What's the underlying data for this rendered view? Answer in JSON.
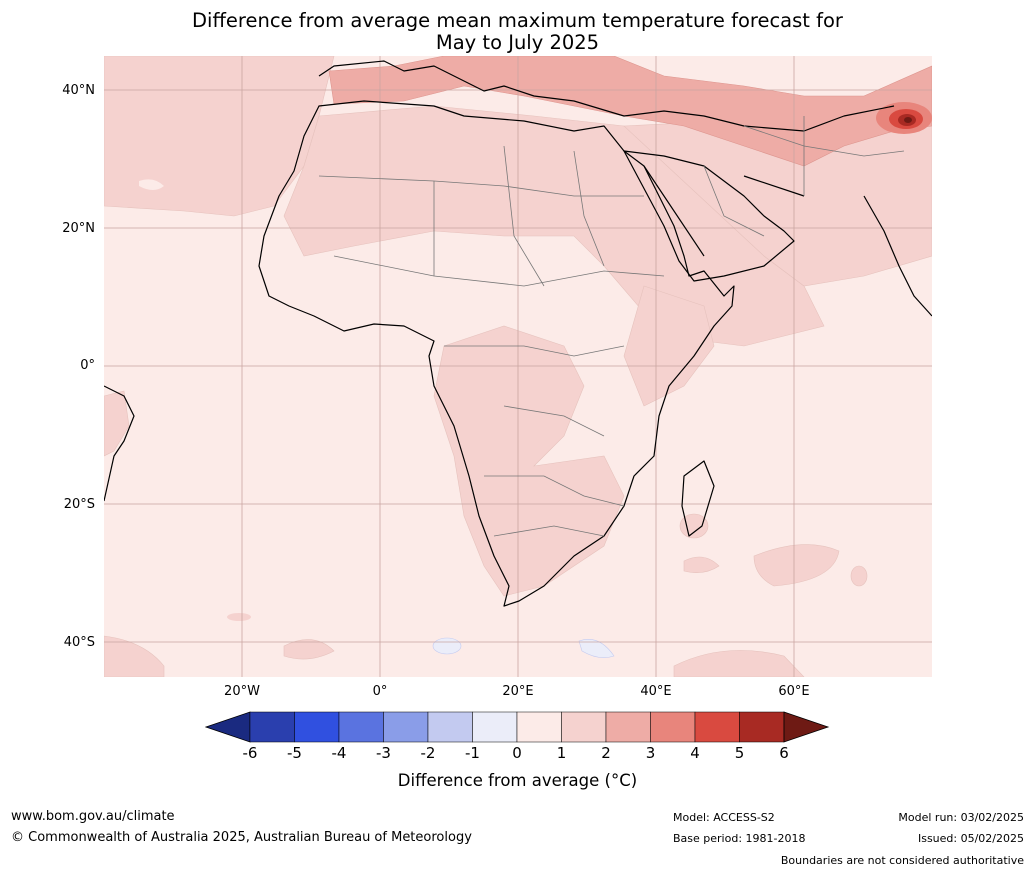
{
  "title_line1": "Difference from average mean maximum temperature forecast for",
  "title_line2": "May to July 2025",
  "lat_labels": [
    "40°N",
    "20°N",
    "0°",
    "20°S",
    "40°S"
  ],
  "lon_labels": [
    "20°W",
    "0°",
    "20°E",
    "40°E",
    "60°E"
  ],
  "colorbar": {
    "ticks": [
      "-6",
      "-5",
      "-4",
      "-3",
      "-2",
      "-1",
      "0",
      "1",
      "2",
      "3",
      "4",
      "5",
      "6"
    ],
    "colors": [
      "#1a2a80",
      "#2a3fae",
      "#3050e0",
      "#5a73e0",
      "#8a9de8",
      "#c3caf0",
      "#ebedf9",
      "#fcebe8",
      "#f5d2cf",
      "#eeaca6",
      "#e8857c",
      "#d94a40",
      "#a82a23",
      "#6e1a14"
    ],
    "label": "Difference from average (°C)"
  },
  "footer": {
    "website": "www.bom.gov.au/climate",
    "copyright": "© Commonwealth of Australia 2025, Australian Bureau of Meteorology",
    "model": "Model: ACCESS-S2",
    "base_period": "Base period: 1981-2018",
    "model_run": "Model run: 03/02/2025",
    "issued": "Issued: 05/02/2025",
    "disclaimer": "Boundaries are not considered authoritative"
  }
}
